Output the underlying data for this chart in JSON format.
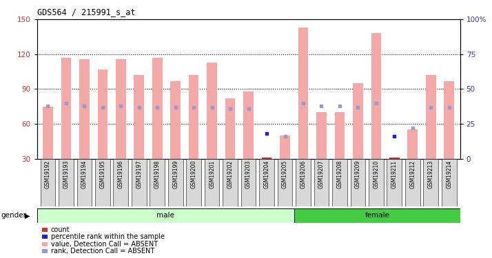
{
  "title": "GDS564 / 215991_s_at",
  "samples": [
    "GSM19192",
    "GSM19193",
    "GSM19194",
    "GSM19195",
    "GSM19196",
    "GSM19197",
    "GSM19198",
    "GSM19199",
    "GSM19200",
    "GSM19201",
    "GSM19202",
    "GSM19203",
    "GSM19204",
    "GSM19205",
    "GSM19206",
    "GSM19207",
    "GSM19208",
    "GSM19209",
    "GSM19210",
    "GSM19211",
    "GSM19212",
    "GSM19213",
    "GSM19214"
  ],
  "bar_heights": [
    75,
    117,
    116,
    107,
    116,
    102,
    117,
    97,
    102,
    113,
    82,
    88,
    31,
    50,
    143,
    70,
    70,
    95,
    138,
    31,
    55,
    102,
    97
  ],
  "bar_color_absent": "#f4a9a8",
  "bar_color_present": "#cc3333",
  "rank_pct": [
    38,
    40,
    38,
    37,
    38,
    37,
    37,
    37,
    37,
    37,
    36,
    36,
    18,
    16,
    40,
    38,
    38,
    37,
    40,
    16,
    22,
    37,
    37
  ],
  "rank_absent": [
    true,
    true,
    true,
    true,
    true,
    true,
    true,
    true,
    true,
    true,
    true,
    true,
    false,
    true,
    true,
    true,
    true,
    true,
    true,
    false,
    true,
    true,
    true
  ],
  "absent_flags": [
    true,
    true,
    true,
    true,
    true,
    true,
    true,
    true,
    true,
    true,
    true,
    true,
    false,
    true,
    true,
    true,
    true,
    true,
    true,
    false,
    true,
    true,
    true
  ],
  "gender_male_count": 14,
  "gender_female_count": 9,
  "ylim_left": [
    30,
    150
  ],
  "yticks_left": [
    30,
    60,
    90,
    120,
    150
  ],
  "ylim_right": [
    0,
    100
  ],
  "yticks_right": [
    0,
    25,
    50,
    75,
    100
  ],
  "grid_values": [
    60,
    90,
    120
  ],
  "bg_color": "#ffffff",
  "plot_bg": "#ffffff",
  "male_color_light": "#ccffcc",
  "female_color": "#44cc44",
  "rank_color_present": "#2222cc",
  "rank_color_absent": "#9999cc",
  "legend_items": [
    {
      "color": "#cc3333",
      "label": "count"
    },
    {
      "color": "#2222cc",
      "label": "percentile rank within the sample"
    },
    {
      "color": "#f4a9a8",
      "label": "value, Detection Call = ABSENT"
    },
    {
      "color": "#9999cc",
      "label": "rank, Detection Call = ABSENT"
    }
  ]
}
